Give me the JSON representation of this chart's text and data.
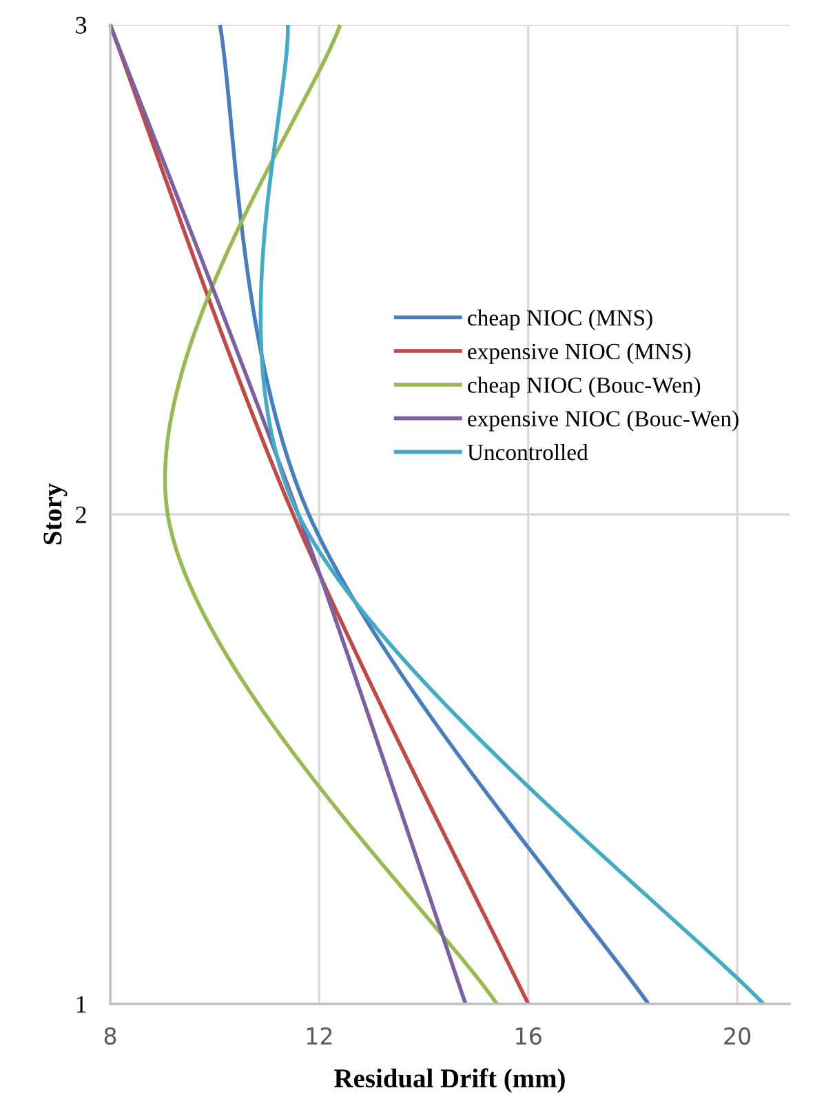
{
  "chart_data": {
    "type": "line",
    "xlabel": "Residual Drift (mm)",
    "ylabel": "Story",
    "xlim": [
      8,
      21
    ],
    "xticks": [
      8,
      12,
      16,
      20
    ],
    "ylim": [
      1,
      3
    ],
    "yticks": [
      1,
      2,
      3
    ],
    "grid": true,
    "legend": "right",
    "marker": "none",
    "line_style": "solid",
    "series": [
      {
        "name": "cheap NIOC (MNS)",
        "color": "#4a7ebb",
        "x": [
          18.3,
          11.8,
          10.1
        ],
        "values": [
          1,
          2,
          3
        ]
      },
      {
        "name": "expensive NIOC (MNS)",
        "color": "#be4b48",
        "x": [
          16.0,
          11.5,
          8.0
        ],
        "values": [
          1,
          2,
          3
        ]
      },
      {
        "name": "cheap NIOC (Bouc-Wen)",
        "color": "#98b954",
        "x": [
          15.4,
          9.1,
          12.4
        ],
        "values": [
          1,
          2,
          3
        ]
      },
      {
        "name": "expensive NIOC (Bouc-Wen)",
        "color": "#7d60a0",
        "x": [
          14.8,
          11.6,
          8.0
        ],
        "values": [
          1,
          2,
          3
        ]
      },
      {
        "name": "Uncontrolled",
        "color": "#46aac5",
        "x": [
          20.5,
          11.6,
          11.4
        ],
        "values": [
          1,
          2,
          3
        ]
      }
    ]
  }
}
